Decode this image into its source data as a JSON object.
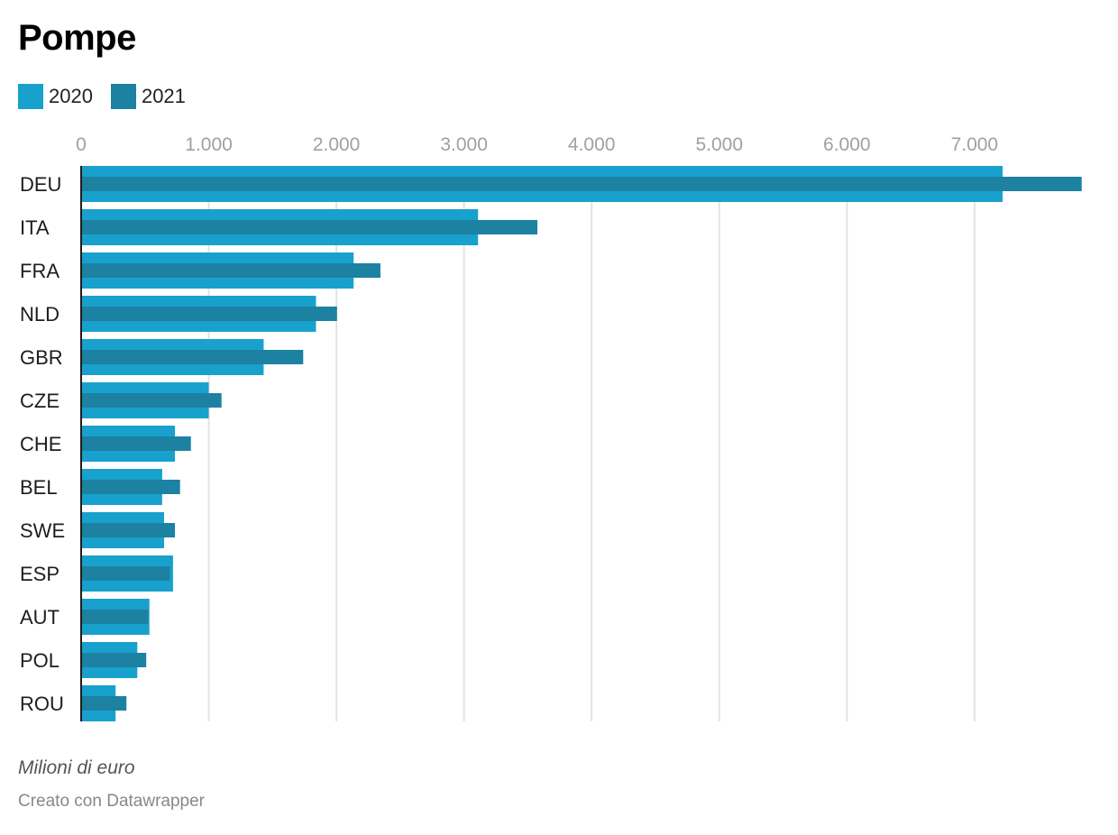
{
  "chart_data": {
    "type": "bar",
    "orientation": "horizontal",
    "title": "Pompe",
    "xlabel": "",
    "ylabel": "",
    "xlim": [
      0,
      7900
    ],
    "xticks": [
      0,
      1000,
      2000,
      3000,
      4000,
      5000,
      6000,
      7000
    ],
    "xtick_labels": [
      "0",
      "1.000",
      "2.000",
      "3.000",
      "4.000",
      "5.000",
      "6.000",
      "7.000"
    ],
    "grid": true,
    "legend_position": "top-left",
    "categories": [
      "DEU",
      "ITA",
      "FRA",
      "NLD",
      "GBR",
      "CZE",
      "CHE",
      "BEL",
      "SWE",
      "ESP",
      "AUT",
      "POL",
      "ROU"
    ],
    "series": [
      {
        "name": "2020",
        "color": "#18a1cd",
        "values": [
          7220,
          3110,
          2135,
          1840,
          1430,
          1000,
          735,
          635,
          650,
          720,
          535,
          440,
          270
        ]
      },
      {
        "name": "2021",
        "color": "#1d81a2",
        "values": [
          7840,
          3575,
          2345,
          2005,
          1740,
          1100,
          860,
          775,
          735,
          695,
          525,
          510,
          355
        ]
      }
    ],
    "note": "Milioni di euro",
    "credit": "Creato con Datawrapper"
  }
}
